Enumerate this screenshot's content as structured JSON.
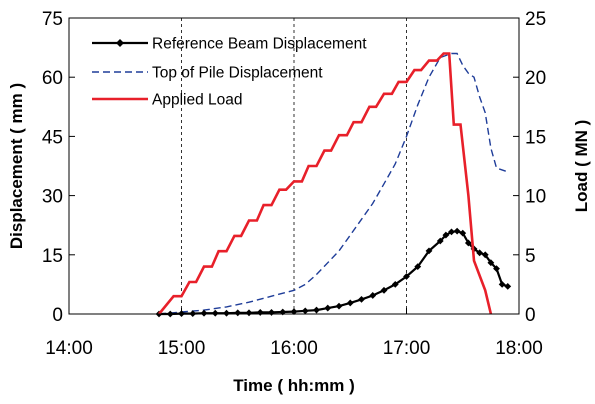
{
  "chart_data": {
    "type": "line",
    "xlabel": "Time ( hh:mm )",
    "ylabel": "Displacement ( mm )",
    "y2label": "Load ( MN )",
    "x_ticks": [
      "14:00",
      "15:00",
      "16:00",
      "17:00",
      "18:00"
    ],
    "x_range_hours": [
      14,
      18
    ],
    "ylim": [
      0,
      75
    ],
    "y_ticks": [
      "0",
      "15",
      "30",
      "45",
      "60",
      "75"
    ],
    "y2lim": [
      0,
      25
    ],
    "y2_ticks": [
      "0",
      "5",
      "10",
      "15",
      "20",
      "25"
    ],
    "grid": "vertical dashed at 15:00, 16:00, 17:00",
    "legend_position": "top-left",
    "series": [
      {
        "name": "Reference Beam Displacement",
        "axis": "left",
        "style": "solid with diamond markers",
        "color": "#000000",
        "x": [
          14.8,
          14.9,
          15.0,
          15.1,
          15.2,
          15.3,
          15.4,
          15.5,
          15.6,
          15.7,
          15.8,
          15.9,
          16.0,
          16.1,
          16.2,
          16.3,
          16.4,
          16.5,
          16.6,
          16.7,
          16.8,
          16.9,
          17.0,
          17.1,
          17.2,
          17.3,
          17.35,
          17.4,
          17.45,
          17.5,
          17.55,
          17.6,
          17.65,
          17.7,
          17.75,
          17.8,
          17.85,
          17.9
        ],
        "y": [
          0,
          0,
          0.1,
          0.1,
          0.2,
          0.2,
          0.2,
          0.3,
          0.3,
          0.4,
          0.4,
          0.5,
          0.6,
          0.8,
          1.0,
          1.5,
          2.0,
          2.8,
          3.7,
          4.7,
          6.0,
          7.5,
          9.5,
          12.0,
          16.0,
          18.5,
          20.0,
          20.8,
          21.0,
          20.5,
          18.0,
          16.5,
          15.5,
          15.0,
          13.0,
          11.5,
          7.5,
          7.0
        ]
      },
      {
        "name": "Top of Pile Displacement",
        "axis": "left",
        "style": "dashed",
        "color": "#1f3d99",
        "x": [
          14.8,
          15.0,
          15.2,
          15.4,
          15.6,
          15.8,
          16.0,
          16.1,
          16.2,
          16.3,
          16.4,
          16.5,
          16.6,
          16.7,
          16.8,
          16.9,
          17.0,
          17.1,
          17.2,
          17.3,
          17.4,
          17.45,
          17.5,
          17.55,
          17.6,
          17.65,
          17.7,
          17.75,
          17.8,
          17.9
        ],
        "y": [
          0,
          0.5,
          1.0,
          1.8,
          3.0,
          4.5,
          6.0,
          7.5,
          10.0,
          13.0,
          16.0,
          20.0,
          24.0,
          28.0,
          33.0,
          38.0,
          45.0,
          53.0,
          60.0,
          65.0,
          66.0,
          66.0,
          63.0,
          61.0,
          60.0,
          55.0,
          51.0,
          42.0,
          37.0,
          36.0
        ]
      },
      {
        "name": "Applied Load",
        "axis": "right",
        "style": "solid stepped",
        "color": "#e8202a",
        "x": [
          14.8,
          14.93,
          15.0,
          15.07,
          15.13,
          15.2,
          15.27,
          15.33,
          15.4,
          15.47,
          15.53,
          15.6,
          15.67,
          15.73,
          15.8,
          15.87,
          15.93,
          16.0,
          16.07,
          16.13,
          16.2,
          16.27,
          16.33,
          16.4,
          16.47,
          16.53,
          16.6,
          16.67,
          16.73,
          16.8,
          16.87,
          16.93,
          17.0,
          17.07,
          17.13,
          17.2,
          17.27,
          17.33,
          17.38,
          17.42,
          17.48,
          17.55,
          17.6,
          17.7,
          17.75
        ],
        "y": [
          0,
          1.5,
          1.5,
          2.7,
          2.7,
          4.0,
          4.0,
          5.3,
          5.3,
          6.6,
          6.6,
          7.9,
          7.9,
          9.2,
          9.2,
          10.5,
          10.5,
          11.2,
          11.2,
          12.5,
          12.5,
          13.8,
          13.8,
          15.1,
          15.1,
          16.2,
          16.2,
          17.5,
          17.5,
          18.6,
          18.6,
          19.6,
          19.6,
          20.6,
          20.6,
          21.4,
          21.4,
          22.0,
          22.0,
          16.0,
          16.0,
          10.0,
          4.5,
          2.0,
          0
        ]
      }
    ]
  }
}
